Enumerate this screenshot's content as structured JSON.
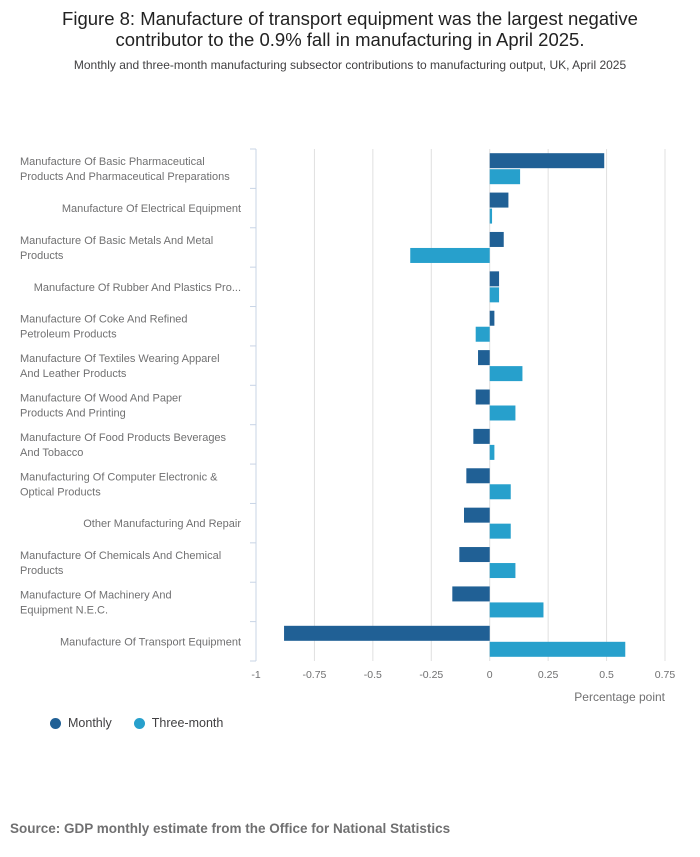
{
  "title_line1": "Figure 8: Manufacture of transport equipment was the largest negative",
  "title_line2": "contributor to the 0.9% fall in manufacturing in April 2025.",
  "subtitle": "Monthly and three-month manufacturing subsector contributions to manufacturing output, UK, April 2025",
  "source": "Source: GDP monthly estimate from the Office for National Statistics",
  "colors": {
    "monthly": "#206095",
    "three_month": "#27a0cc",
    "grid": "#e0e0e0",
    "axis": "#c8d4e6",
    "text": "#707071"
  },
  "chart_data": {
    "type": "bar",
    "orientation": "horizontal",
    "xlabel": "Percentage point",
    "xlim": [
      -1,
      0.75
    ],
    "ticks": [
      -1,
      -0.75,
      -0.5,
      -0.25,
      0,
      0.25,
      0.5,
      0.75
    ],
    "tick_labels": [
      "-1",
      "-0.75",
      "-0.5",
      "-0.25",
      "0",
      "0.25",
      "0.5",
      "0.75"
    ],
    "categories": [
      [
        "Manufacture Of Basic Pharmaceutical",
        "Products And Pharmaceutical Preparations"
      ],
      [
        "Manufacture Of Electrical Equipment"
      ],
      [
        "Manufacture Of Basic Metals And Metal",
        "Products"
      ],
      [
        "Manufacture Of Rubber And Plastics Pro..."
      ],
      [
        "Manufacture Of Coke And Refined",
        "Petroleum Products"
      ],
      [
        "Manufacture Of Textiles Wearing Apparel",
        "And Leather Products"
      ],
      [
        "Manufacture Of Wood And Paper",
        "Products And Printing"
      ],
      [
        "Manufacture Of Food Products Beverages",
        "And Tobacco"
      ],
      [
        "Manufacturing Of Computer Electronic &",
        "Optical Products"
      ],
      [
        "Other Manufacturing And Repair"
      ],
      [
        "Manufacture Of Chemicals And Chemical",
        "Products"
      ],
      [
        "Manufacture Of Machinery And",
        "Equipment N.E.C."
      ],
      [
        "Manufacture Of Transport Equipment"
      ]
    ],
    "series": [
      {
        "name": "Monthly",
        "values": [
          0.49,
          0.08,
          0.06,
          0.04,
          0.02,
          -0.05,
          -0.06,
          -0.07,
          -0.1,
          -0.11,
          -0.13,
          -0.16,
          -0.88
        ]
      },
      {
        "name": "Three-month",
        "values": [
          0.13,
          0.01,
          -0.34,
          0.04,
          -0.06,
          0.14,
          0.11,
          0.02,
          0.09,
          0.09,
          0.11,
          0.23,
          0.58
        ]
      }
    ],
    "legend_position": "bottom-left"
  }
}
